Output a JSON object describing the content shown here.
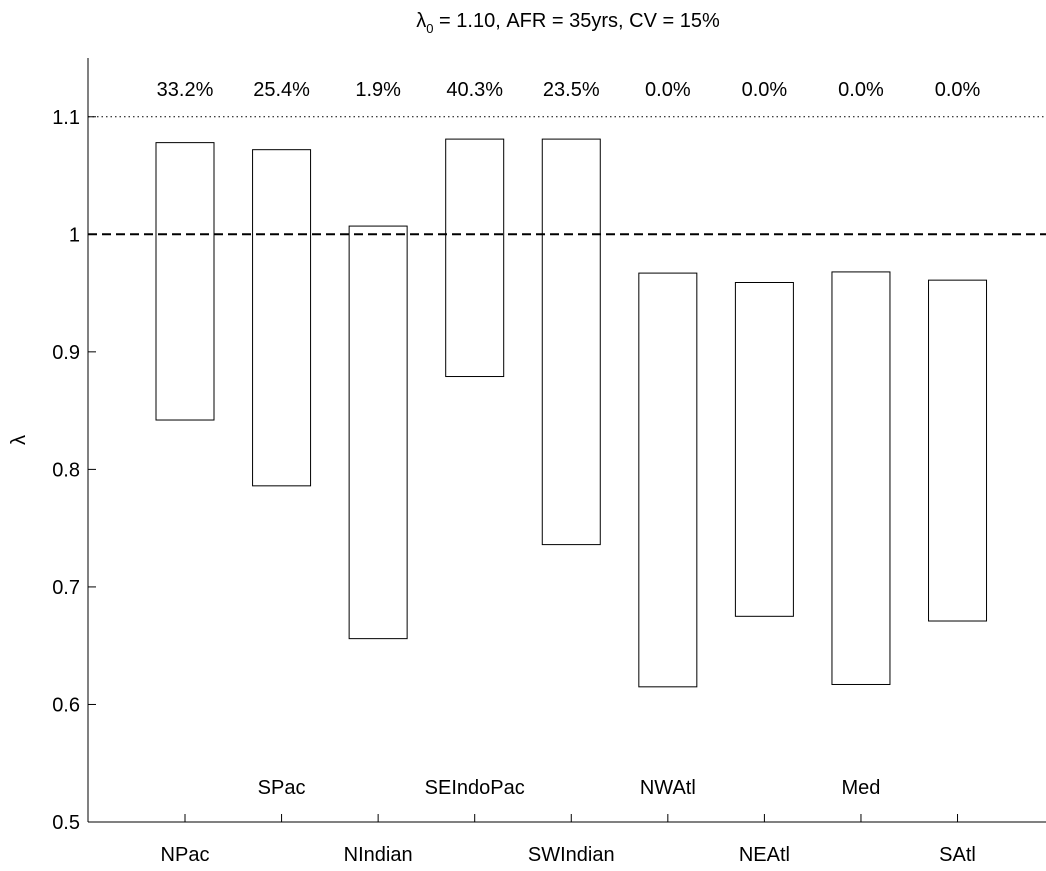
{
  "chart_data": {
    "type": "bar",
    "title_main": "λ",
    "title_sub": "0",
    "title_rest": " = 1.10, AFR = 35yrs, CV = 15%",
    "xlabel": "",
    "ylabel": "λ",
    "ylim": [
      0.5,
      1.15
    ],
    "yticks": [
      "0.5",
      "0.6",
      "0.7",
      "0.8",
      "0.9",
      "1",
      "1.1"
    ],
    "categories": [
      "NPac",
      "SPac",
      "NIndian",
      "SEIndoPac",
      "SWIndian",
      "NWAtl",
      "NEAtl",
      "Med",
      "SAtl"
    ],
    "ranges": [
      [
        0.842,
        1.078
      ],
      [
        0.786,
        1.072
      ],
      [
        0.656,
        1.007
      ],
      [
        0.879,
        1.081
      ],
      [
        0.736,
        1.081
      ],
      [
        0.615,
        0.967
      ],
      [
        0.675,
        0.959
      ],
      [
        0.617,
        0.968
      ],
      [
        0.671,
        0.961
      ]
    ],
    "percent_labels": [
      "33.2%",
      "25.4%",
      "1.9%",
      "40.3%",
      "23.5%",
      "0.0%",
      "0.0%",
      "0.0%",
      "0.0%"
    ],
    "reference_lines": [
      {
        "value": 1.1,
        "style": "dotted"
      },
      {
        "value": 1.0,
        "style": "dashed"
      }
    ],
    "grid": false,
    "legend": "none"
  }
}
